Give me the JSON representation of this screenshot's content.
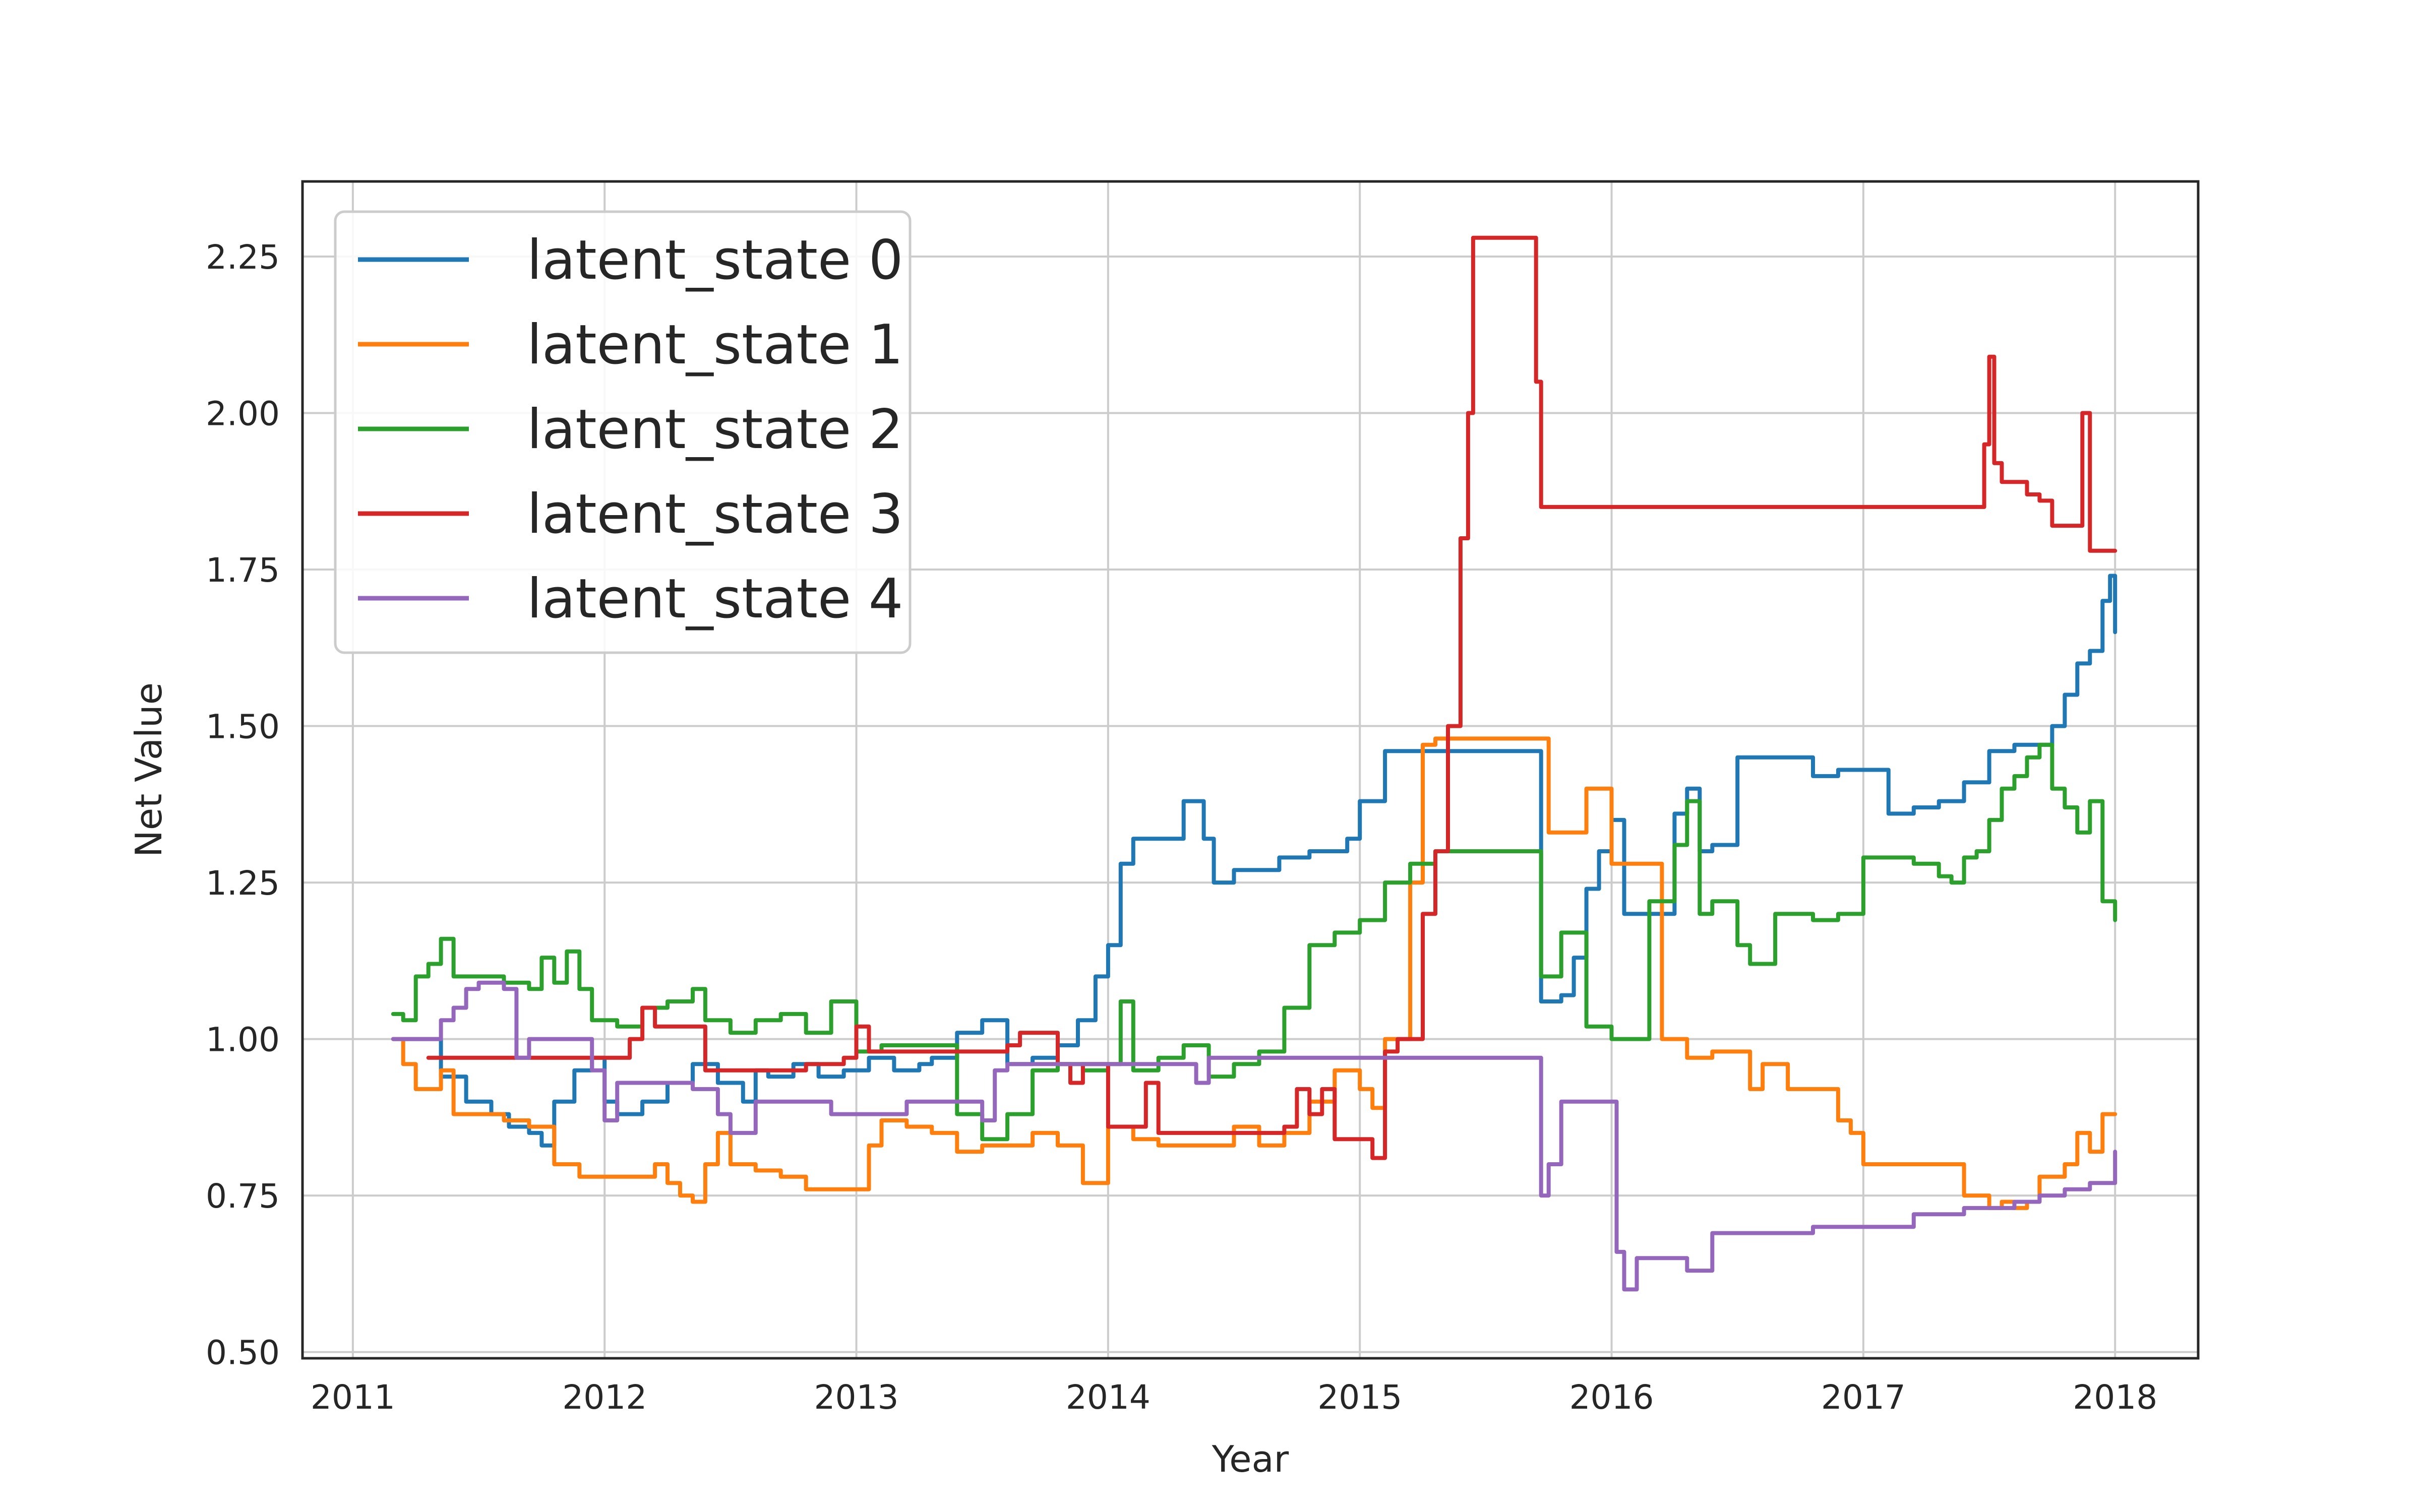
{
  "chart_data": {
    "type": "line",
    "title": "",
    "xlabel": "Year",
    "ylabel": "Net Value",
    "xlim": [
      2010.8,
      2018.33
    ],
    "ylim": [
      0.49,
      2.37
    ],
    "x_ticks": [
      2011,
      2012,
      2013,
      2014,
      2015,
      2016,
      2017,
      2018
    ],
    "x_tick_labels": [
      "2011",
      "2012",
      "2013",
      "2014",
      "2015",
      "2016",
      "2017",
      "2018"
    ],
    "y_ticks": [
      0.5,
      0.75,
      1.0,
      1.25,
      1.5,
      1.75,
      2.0,
      2.25
    ],
    "y_tick_labels": [
      "0.50",
      "0.75",
      "1.00",
      "1.25",
      "1.50",
      "1.75",
      "2.00",
      "2.25"
    ],
    "grid": true,
    "legend_position": "top-left",
    "series": [
      {
        "name": "latent_state 0",
        "color": "#1f77b4",
        "x": [
          2011.16,
          2011.25,
          2011.35,
          2011.45,
          2011.55,
          2011.62,
          2011.7,
          2011.75,
          2011.8,
          2011.88,
          2011.95,
          2012.0,
          2012.05,
          2012.15,
          2012.25,
          2012.35,
          2012.45,
          2012.55,
          2012.6,
          2012.65,
          2012.75,
          2012.85,
          2012.95,
          2013.05,
          2013.15,
          2013.25,
          2013.3,
          2013.4,
          2013.5,
          2013.6,
          2013.7,
          2013.8,
          2013.88,
          2013.95,
          2014.0,
          2014.05,
          2014.1,
          2014.2,
          2014.3,
          2014.38,
          2014.42,
          2014.5,
          2014.6,
          2014.68,
          2014.8,
          2014.95,
          2015.0,
          2015.1,
          2015.3,
          2015.5,
          2015.7,
          2015.72,
          2015.8,
          2015.85,
          2015.9,
          2015.95,
          2016.0,
          2016.05,
          2016.15,
          2016.25,
          2016.3,
          2016.35,
          2016.4,
          2016.5,
          2016.6,
          2016.8,
          2016.9,
          2017.0,
          2017.1,
          2017.2,
          2017.3,
          2017.4,
          2017.5,
          2017.6,
          2017.7,
          2017.75,
          2017.8,
          2017.85,
          2017.9,
          2017.95,
          2017.98,
          2018.0
        ],
        "values": [
          1.0,
          1.0,
          0.94,
          0.9,
          0.88,
          0.86,
          0.85,
          0.83,
          0.9,
          0.95,
          0.97,
          0.9,
          0.88,
          0.9,
          0.93,
          0.96,
          0.93,
          0.9,
          0.95,
          0.94,
          0.96,
          0.94,
          0.95,
          0.97,
          0.95,
          0.96,
          0.97,
          1.01,
          1.03,
          0.96,
          0.97,
          0.99,
          1.03,
          1.1,
          1.15,
          1.28,
          1.32,
          1.32,
          1.38,
          1.32,
          1.25,
          1.27,
          1.27,
          1.29,
          1.3,
          1.32,
          1.38,
          1.46,
          1.46,
          1.46,
          1.46,
          1.06,
          1.07,
          1.13,
          1.24,
          1.3,
          1.35,
          1.2,
          1.2,
          1.36,
          1.4,
          1.3,
          1.31,
          1.45,
          1.45,
          1.42,
          1.43,
          1.43,
          1.36,
          1.37,
          1.38,
          1.41,
          1.46,
          1.47,
          1.47,
          1.5,
          1.55,
          1.6,
          1.62,
          1.7,
          1.74,
          1.65
        ]
      },
      {
        "name": "latent_state 1",
        "color": "#ff7f0e",
        "x": [
          2011.16,
          2011.2,
          2011.25,
          2011.35,
          2011.4,
          2011.5,
          2011.6,
          2011.7,
          2011.8,
          2011.85,
          2011.9,
          2012.0,
          2012.1,
          2012.2,
          2012.25,
          2012.3,
          2012.35,
          2012.4,
          2012.45,
          2012.5,
          2012.6,
          2012.7,
          2012.8,
          2012.9,
          2013.0,
          2013.05,
          2013.1,
          2013.2,
          2013.3,
          2013.4,
          2013.5,
          2013.6,
          2013.7,
          2013.8,
          2013.9,
          2014.0,
          2014.1,
          2014.2,
          2014.3,
          2014.4,
          2014.5,
          2014.6,
          2014.7,
          2014.8,
          2014.9,
          2015.0,
          2015.05,
          2015.1,
          2015.2,
          2015.25,
          2015.3,
          2015.4,
          2015.5,
          2015.6,
          2015.7,
          2015.75,
          2015.85,
          2015.9,
          2016.0,
          2016.1,
          2016.2,
          2016.3,
          2016.4,
          2016.5,
          2016.55,
          2016.6,
          2016.7,
          2016.8,
          2016.9,
          2016.95,
          2017.0,
          2017.1,
          2017.2,
          2017.3,
          2017.4,
          2017.5,
          2017.55,
          2017.6,
          2017.65,
          2017.7,
          2017.8,
          2017.85,
          2017.9,
          2017.95,
          2018.0
        ],
        "values": [
          1.0,
          0.96,
          0.92,
          0.95,
          0.88,
          0.88,
          0.87,
          0.86,
          0.8,
          0.8,
          0.78,
          0.78,
          0.78,
          0.8,
          0.77,
          0.75,
          0.74,
          0.8,
          0.85,
          0.8,
          0.79,
          0.78,
          0.76,
          0.76,
          0.76,
          0.83,
          0.87,
          0.86,
          0.85,
          0.82,
          0.83,
          0.83,
          0.85,
          0.83,
          0.77,
          0.86,
          0.84,
          0.83,
          0.83,
          0.83,
          0.86,
          0.83,
          0.85,
          0.9,
          0.95,
          0.92,
          0.89,
          1.0,
          1.25,
          1.47,
          1.48,
          1.48,
          1.48,
          1.48,
          1.48,
          1.33,
          1.33,
          1.4,
          1.28,
          1.28,
          1.0,
          0.97,
          0.98,
          0.98,
          0.92,
          0.96,
          0.92,
          0.92,
          0.87,
          0.85,
          0.8,
          0.8,
          0.8,
          0.8,
          0.75,
          0.73,
          0.74,
          0.73,
          0.74,
          0.78,
          0.8,
          0.85,
          0.82,
          0.88,
          0.88
        ]
      },
      {
        "name": "latent_state 2",
        "color": "#2ca02c",
        "x": [
          2011.16,
          2011.2,
          2011.25,
          2011.3,
          2011.35,
          2011.4,
          2011.5,
          2011.6,
          2011.7,
          2011.75,
          2011.8,
          2011.85,
          2011.9,
          2011.95,
          2012.0,
          2012.05,
          2012.15,
          2012.25,
          2012.35,
          2012.4,
          2012.5,
          2012.6,
          2012.7,
          2012.8,
          2012.9,
          2013.0,
          2013.1,
          2013.2,
          2013.3,
          2013.4,
          2013.5,
          2013.6,
          2013.7,
          2013.8,
          2013.9,
          2014.0,
          2014.05,
          2014.1,
          2014.2,
          2014.3,
          2014.4,
          2014.5,
          2014.6,
          2014.7,
          2014.8,
          2014.9,
          2015.0,
          2015.1,
          2015.2,
          2015.3,
          2015.5,
          2015.7,
          2015.72,
          2015.8,
          2015.9,
          2016.0,
          2016.1,
          2016.15,
          2016.25,
          2016.3,
          2016.35,
          2016.4,
          2016.5,
          2016.55,
          2016.65,
          2016.75,
          2016.8,
          2016.9,
          2017.0,
          2017.1,
          2017.2,
          2017.3,
          2017.35,
          2017.4,
          2017.45,
          2017.5,
          2017.55,
          2017.6,
          2017.65,
          2017.7,
          2017.75,
          2017.8,
          2017.85,
          2017.9,
          2017.95,
          2018.0
        ],
        "values": [
          1.04,
          1.03,
          1.1,
          1.12,
          1.16,
          1.1,
          1.1,
          1.09,
          1.08,
          1.13,
          1.09,
          1.14,
          1.08,
          1.03,
          1.03,
          1.02,
          1.05,
          1.06,
          1.08,
          1.03,
          1.01,
          1.03,
          1.04,
          1.01,
          1.06,
          0.98,
          0.99,
          0.99,
          0.99,
          0.88,
          0.84,
          0.88,
          0.95,
          0.96,
          0.95,
          0.96,
          1.06,
          0.95,
          0.97,
          0.99,
          0.94,
          0.96,
          0.98,
          1.05,
          1.15,
          1.17,
          1.19,
          1.25,
          1.28,
          1.3,
          1.3,
          1.3,
          1.1,
          1.17,
          1.02,
          1.0,
          1.0,
          1.22,
          1.31,
          1.38,
          1.2,
          1.22,
          1.15,
          1.12,
          1.2,
          1.2,
          1.19,
          1.2,
          1.29,
          1.29,
          1.28,
          1.26,
          1.25,
          1.29,
          1.3,
          1.35,
          1.4,
          1.42,
          1.45,
          1.47,
          1.4,
          1.37,
          1.33,
          1.38,
          1.22,
          1.19
        ]
      },
      {
        "name": "latent_state 3",
        "color": "#d62728",
        "x": [
          2011.3,
          2011.5,
          2011.7,
          2011.9,
          2012.1,
          2012.15,
          2012.2,
          2012.35,
          2012.4,
          2012.6,
          2012.8,
          2012.95,
          2013.0,
          2013.05,
          2013.2,
          2013.4,
          2013.55,
          2013.6,
          2013.65,
          2013.8,
          2013.85,
          2013.9,
          2014.0,
          2014.1,
          2014.15,
          2014.2,
          2014.35,
          2014.5,
          2014.7,
          2014.75,
          2014.8,
          2014.85,
          2014.9,
          2015.0,
          2015.05,
          2015.1,
          2015.15,
          2015.2,
          2015.25,
          2015.3,
          2015.35,
          2015.4,
          2015.43,
          2015.45,
          2015.7,
          2015.72,
          2016.0,
          2016.5,
          2017.0,
          2017.4,
          2017.48,
          2017.5,
          2017.52,
          2017.55,
          2017.6,
          2017.65,
          2017.7,
          2017.75,
          2017.8,
          2017.85,
          2017.87,
          2017.9,
          2017.95,
          2018.0
        ],
        "values": [
          0.97,
          0.97,
          0.97,
          0.97,
          1.0,
          1.05,
          1.02,
          1.02,
          0.95,
          0.95,
          0.96,
          0.97,
          1.02,
          0.98,
          0.98,
          0.98,
          0.98,
          0.99,
          1.01,
          0.96,
          0.93,
          0.96,
          0.86,
          0.86,
          0.93,
          0.85,
          0.85,
          0.85,
          0.86,
          0.92,
          0.88,
          0.92,
          0.84,
          0.84,
          0.81,
          0.98,
          1.0,
          1.0,
          1.2,
          1.3,
          1.5,
          1.8,
          2.0,
          2.28,
          2.05,
          1.85,
          1.85,
          1.85,
          1.85,
          1.85,
          1.95,
          2.09,
          1.92,
          1.89,
          1.89,
          1.87,
          1.86,
          1.82,
          1.82,
          1.82,
          2.0,
          1.78,
          1.78,
          1.78
        ]
      },
      {
        "name": "latent_state 4",
        "color": "#9467bd",
        "x": [
          2011.16,
          2011.25,
          2011.3,
          2011.35,
          2011.4,
          2011.45,
          2011.5,
          2011.55,
          2011.6,
          2011.65,
          2011.7,
          2011.8,
          2011.9,
          2011.95,
          2012.0,
          2012.05,
          2012.15,
          2012.25,
          2012.35,
          2012.45,
          2012.5,
          2012.6,
          2012.7,
          2012.8,
          2012.9,
          2013.0,
          2013.1,
          2013.2,
          2013.3,
          2013.4,
          2013.5,
          2013.55,
          2013.6,
          2013.65,
          2013.7,
          2014.0,
          2014.3,
          2014.35,
          2014.4,
          2014.5,
          2015.0,
          2015.5,
          2015.7,
          2015.72,
          2015.75,
          2015.8,
          2016.0,
          2016.02,
          2016.05,
          2016.1,
          2016.2,
          2016.3,
          2016.4,
          2016.5,
          2016.6,
          2016.7,
          2016.8,
          2016.9,
          2017.0,
          2017.1,
          2017.2,
          2017.3,
          2017.4,
          2017.5,
          2017.6,
          2017.7,
          2017.8,
          2017.9,
          2017.95,
          2018.0
        ],
        "values": [
          1.0,
          1.0,
          1.0,
          1.03,
          1.05,
          1.08,
          1.09,
          1.09,
          1.08,
          0.97,
          1.0,
          1.0,
          1.0,
          0.95,
          0.87,
          0.93,
          0.93,
          0.93,
          0.92,
          0.88,
          0.85,
          0.9,
          0.9,
          0.9,
          0.88,
          0.88,
          0.88,
          0.9,
          0.9,
          0.9,
          0.87,
          0.95,
          0.96,
          0.96,
          0.96,
          0.96,
          0.96,
          0.93,
          0.97,
          0.97,
          0.97,
          0.97,
          0.97,
          0.75,
          0.8,
          0.9,
          0.9,
          0.66,
          0.6,
          0.65,
          0.65,
          0.63,
          0.69,
          0.69,
          0.69,
          0.69,
          0.7,
          0.7,
          0.7,
          0.7,
          0.72,
          0.72,
          0.73,
          0.73,
          0.74,
          0.75,
          0.76,
          0.77,
          0.77,
          0.82
        ]
      }
    ]
  }
}
